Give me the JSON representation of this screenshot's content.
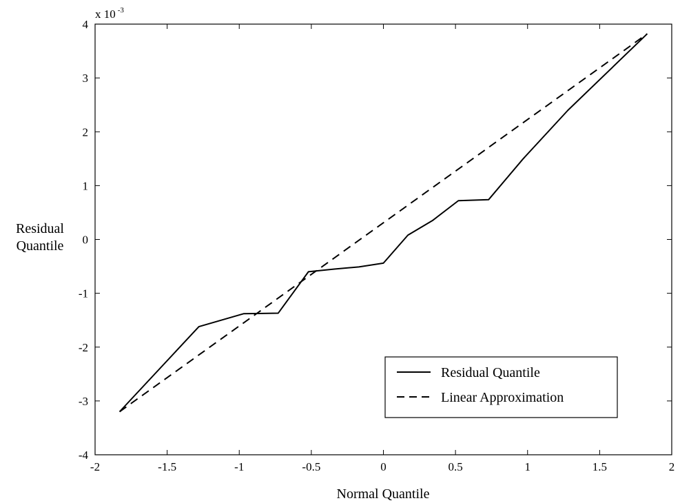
{
  "chart_data": {
    "type": "line",
    "xlabel": "Normal Quantile",
    "ylabel": [
      "Residual",
      "Quantile"
    ],
    "y_exponent": {
      "base": "x 10",
      "power": "-3"
    },
    "xlim": [
      -2,
      2
    ],
    "ylim": [
      -4,
      4
    ],
    "x_ticks": [
      "-2",
      "-1.5",
      "-1",
      "-0.5",
      "0",
      "0.5",
      "1",
      "1.5",
      "2"
    ],
    "y_ticks": [
      "4",
      "3",
      "2",
      "1",
      "0",
      "-1",
      "-2",
      "-3",
      "-4"
    ],
    "grid": false,
    "legend_position": "bottom-right",
    "series": [
      {
        "name": "Residual Quantile",
        "style": "solid",
        "x": [
          -1.83,
          -1.28,
          -0.97,
          -0.73,
          -0.52,
          -0.34,
          -0.17,
          0.0,
          0.17,
          0.34,
          0.52,
          0.73,
          0.97,
          1.28,
          1.83
        ],
        "y": [
          -3.2,
          -1.62,
          -1.38,
          -1.37,
          -0.6,
          -0.55,
          -0.51,
          -0.44,
          0.08,
          0.35,
          0.72,
          0.74,
          1.5,
          2.4,
          3.82
        ]
      },
      {
        "name": "Linear Approximation",
        "style": "dashed",
        "x": [
          -1.83,
          1.83
        ],
        "y": [
          -3.2,
          3.82
        ]
      }
    ]
  }
}
